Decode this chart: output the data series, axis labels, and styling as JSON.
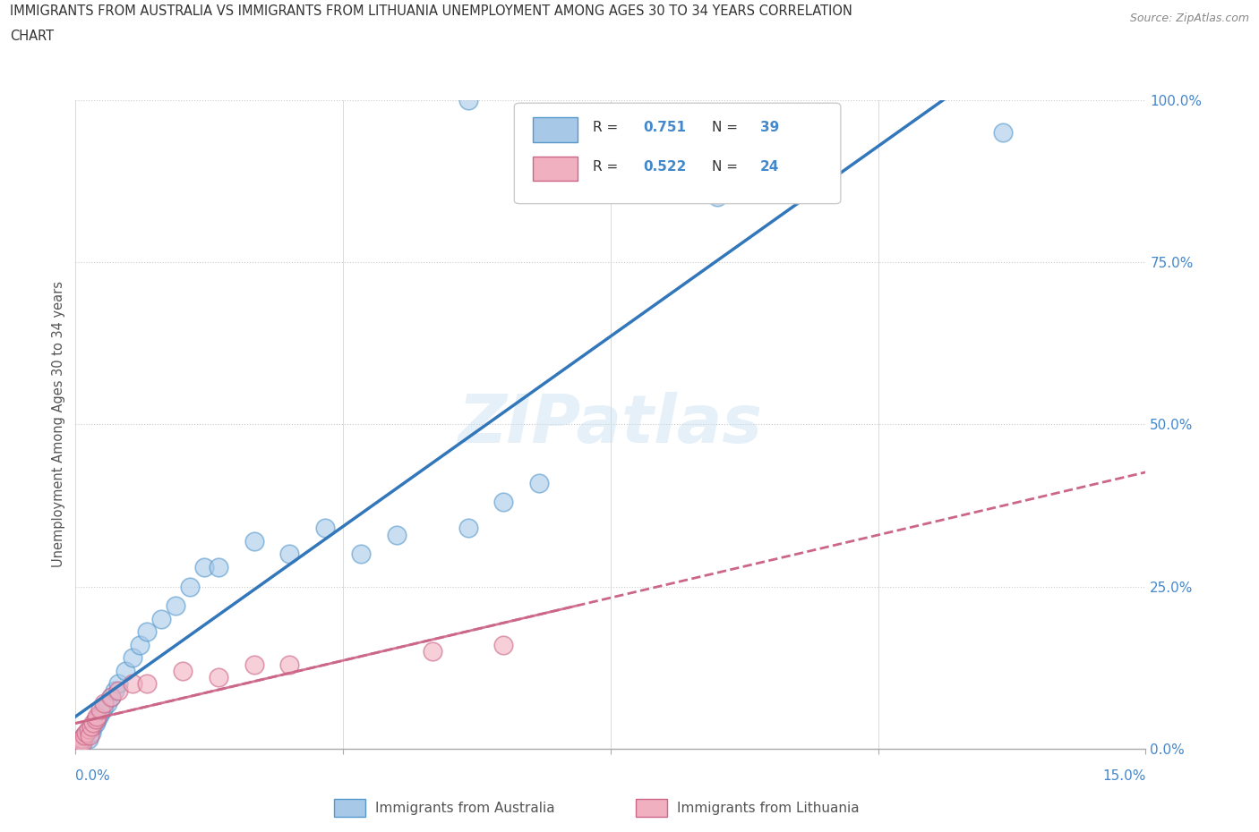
{
  "title_line1": "IMMIGRANTS FROM AUSTRALIA VS IMMIGRANTS FROM LITHUANIA UNEMPLOYMENT AMONG AGES 30 TO 34 YEARS CORRELATION",
  "title_line2": "CHART",
  "source": "Source: ZipAtlas.com",
  "ylabel": "Unemployment Among Ages 30 to 34 years",
  "xlim": [
    0.0,
    15.0
  ],
  "ylim": [
    0.0,
    100.0
  ],
  "ytick_labels": [
    "0.0%",
    "25.0%",
    "50.0%",
    "75.0%",
    "100.0%"
  ],
  "ytick_values": [
    0,
    25,
    50,
    75,
    100
  ],
  "watermark": "ZIPatlas",
  "australia_color": "#a8c8e8",
  "australia_edge_color": "#5599cc",
  "australia_line_color": "#3377bb",
  "lithuania_color": "#f0b0c0",
  "lithuania_edge_color": "#cc6688",
  "lithuania_line_color": "#cc6688",
  "background_color": "#ffffff",
  "tick_color": "#4488cc",
  "grid_color": "#cccccc",
  "aus_x": [
    0.05,
    0.08,
    0.1,
    0.12,
    0.15,
    0.18,
    0.2,
    0.22,
    0.25,
    0.28,
    0.3,
    0.32,
    0.35,
    0.38,
    0.4,
    0.45,
    0.5,
    0.55,
    0.6,
    0.7,
    0.8,
    0.9,
    1.0,
    1.2,
    1.4,
    1.6,
    1.8,
    2.0,
    2.5,
    3.0,
    3.5,
    4.0,
    4.5,
    5.5,
    6.0,
    6.5,
    9.0,
    13.0,
    5.5
  ],
  "aus_y": [
    0.5,
    1.0,
    1.5,
    2.0,
    2.0,
    1.5,
    3.0,
    2.5,
    3.5,
    4.0,
    4.5,
    5.0,
    5.5,
    6.0,
    6.5,
    7.0,
    8.0,
    9.0,
    10.0,
    12.0,
    14.0,
    16.0,
    18.0,
    20.0,
    22.0,
    25.0,
    28.0,
    28.0,
    32.0,
    30.0,
    34.0,
    30.0,
    33.0,
    34.0,
    38.0,
    41.0,
    85.0,
    95.0,
    100.0
  ],
  "lit_x": [
    0.04,
    0.06,
    0.08,
    0.1,
    0.12,
    0.15,
    0.18,
    0.2,
    0.22,
    0.25,
    0.28,
    0.3,
    0.35,
    0.4,
    0.5,
    0.6,
    0.8,
    1.0,
    1.5,
    2.0,
    2.5,
    3.0,
    5.0,
    6.0
  ],
  "lit_y": [
    0.5,
    1.0,
    1.5,
    1.0,
    2.0,
    2.5,
    3.0,
    2.0,
    3.5,
    4.0,
    4.5,
    5.0,
    6.0,
    7.0,
    8.0,
    9.0,
    10.0,
    10.0,
    12.0,
    11.0,
    13.0,
    13.0,
    15.0,
    16.0
  ]
}
